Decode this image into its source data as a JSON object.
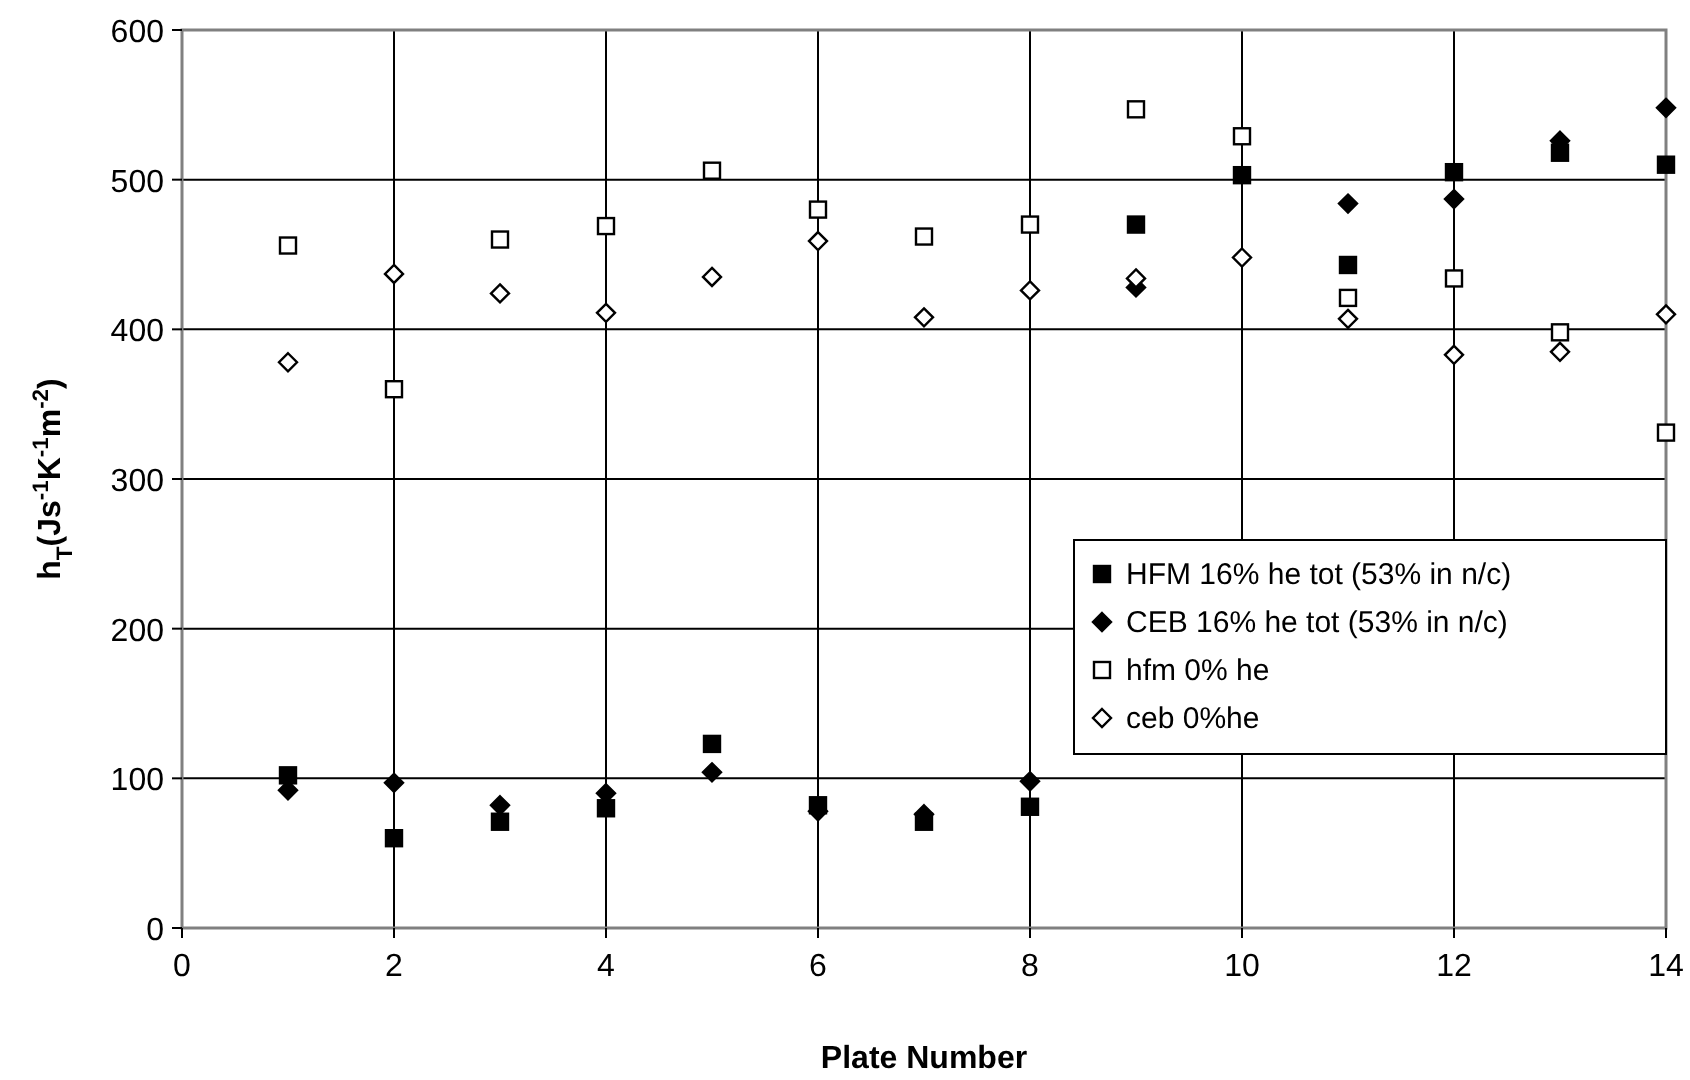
{
  "chart_data": {
    "type": "scatter",
    "xlabel": "Plate Number",
    "ylabel": "h$_{T}$(Js$^{-1}$K$^{-1}$m$^{-2}$)",
    "x": [
      1,
      2,
      3,
      4,
      5,
      6,
      7,
      8,
      9,
      10,
      11,
      12,
      13,
      14
    ],
    "xlim": [
      0,
      14
    ],
    "xticks": [
      0,
      2,
      4,
      6,
      8,
      10,
      12,
      14
    ],
    "ylim": [
      0,
      600
    ],
    "yticks": [
      0,
      100,
      200,
      300,
      400,
      500,
      600
    ],
    "grid": true,
    "legend": "right",
    "series": [
      {
        "name": "HFM 16% he tot (53% in n/c)",
        "color": "#000000",
        "marker": "square",
        "values": [
          102,
          60,
          71,
          80,
          123,
          82,
          71,
          81,
          470,
          503,
          443,
          505,
          518,
          510
        ]
      },
      {
        "name": "CEB 16% he tot (53% in n/c)",
        "color": "#000000",
        "marker": "diamond",
        "values": [
          92,
          97,
          82,
          90,
          104,
          78,
          76,
          98,
          428,
          null,
          484,
          487,
          526,
          548
        ]
      },
      {
        "name": "hfm 0% he",
        "color": "#ffffff",
        "marker": "square",
        "values": [
          456,
          360,
          460,
          469,
          506,
          480,
          462,
          470,
          547,
          529,
          421,
          434,
          398,
          331
        ]
      },
      {
        "name": "ceb 0%he",
        "color": "#ffffff",
        "marker": "diamond",
        "values": [
          378,
          437,
          424,
          411,
          435,
          459,
          408,
          426,
          434,
          448,
          407,
          383,
          385,
          410
        ]
      }
    ]
  }
}
